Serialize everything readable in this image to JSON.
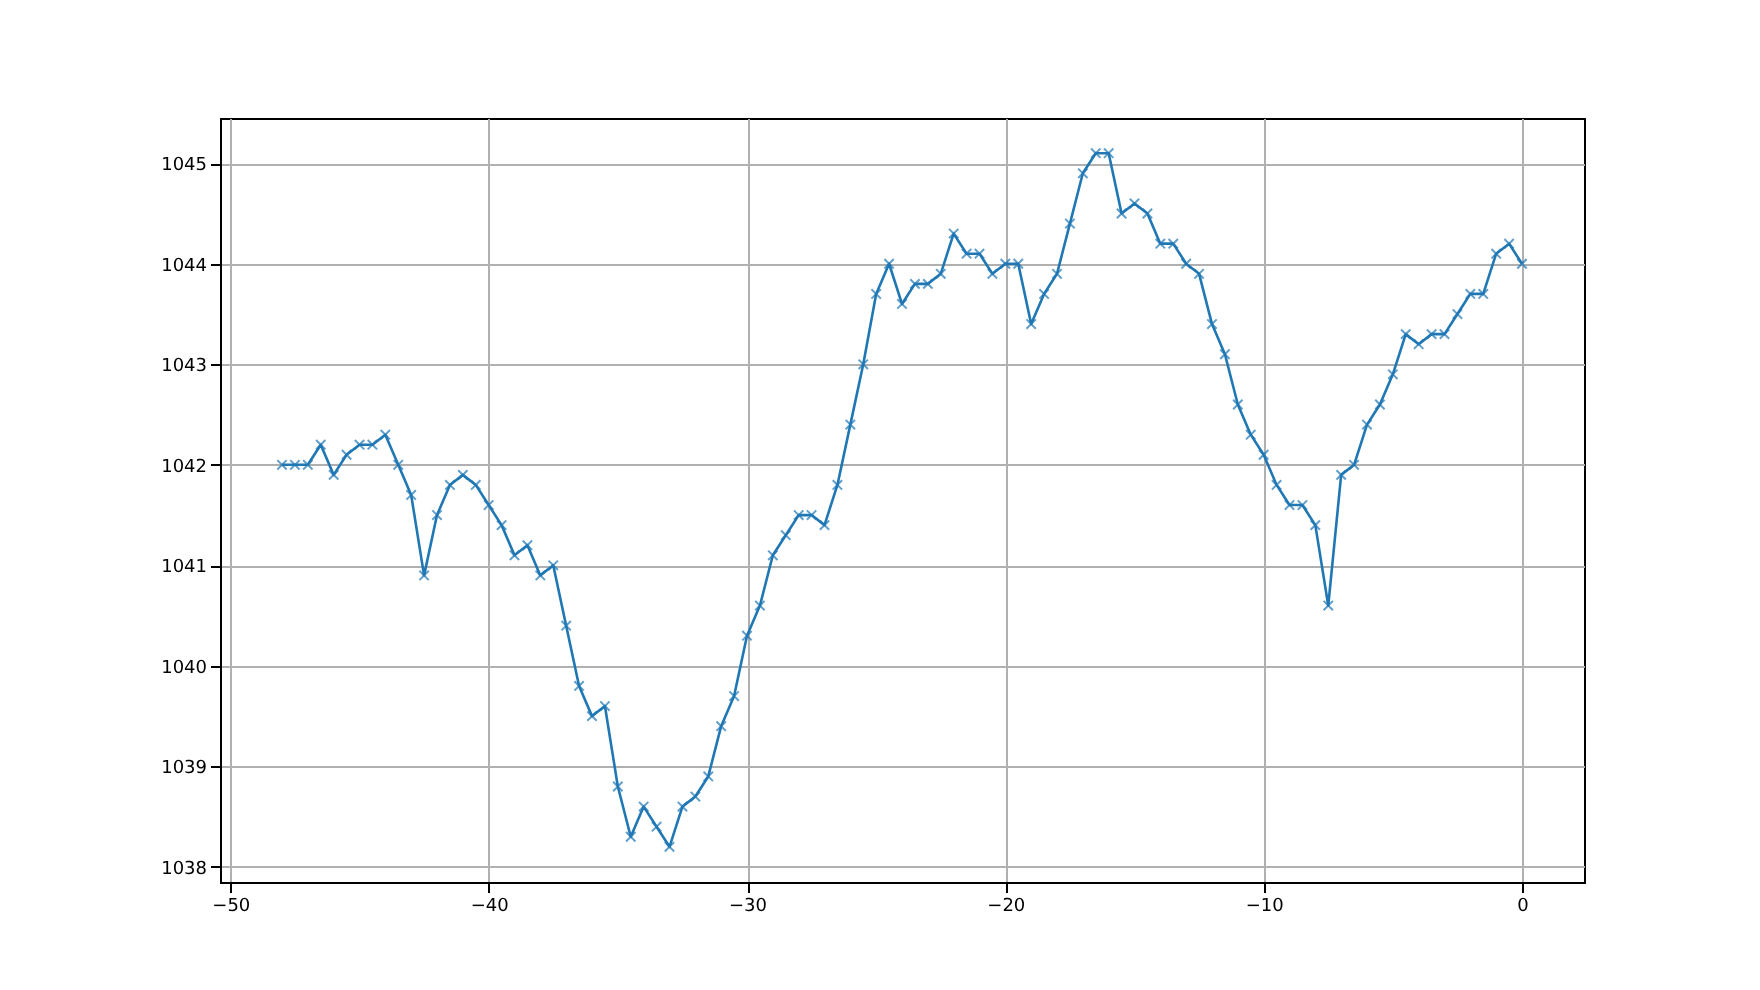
{
  "chart_data": {
    "type": "line",
    "x": [
      -48,
      -47.5,
      -47,
      -46.5,
      -46,
      -45.5,
      -45,
      -44.5,
      -44,
      -43.5,
      -43,
      -42.5,
      -42,
      -41.5,
      -41,
      -40.5,
      -40,
      -39.5,
      -39,
      -38.5,
      -38,
      -37.5,
      -37,
      -36.5,
      -36,
      -35.5,
      -35,
      -34.5,
      -34,
      -33.5,
      -33,
      -32.5,
      -32,
      -31.5,
      -31,
      -30.5,
      -30,
      -29.5,
      -29,
      -28.5,
      -28,
      -27.5,
      -27,
      -26.5,
      -26,
      -25.5,
      -25,
      -24.5,
      -24,
      -23.5,
      -23,
      -22.5,
      -22,
      -21.5,
      -21,
      -20.5,
      -20,
      -19.5,
      -19,
      -18.5,
      -18,
      -17.5,
      -17,
      -16.5,
      -16,
      -15.5,
      -15,
      -14.5,
      -14,
      -13.5,
      -13,
      -12.5,
      -12,
      -11.5,
      -11,
      -10.5,
      -10,
      -9.5,
      -9,
      -8.5,
      -8,
      -7.5,
      -7,
      -6.5,
      -6,
      -5.5,
      -5,
      -4.5,
      -4,
      -3.5,
      -3,
      -2.5,
      -2,
      -1.5,
      -1,
      -0.5,
      0
    ],
    "series": [
      {
        "color": "#1f77b4",
        "values": [
          1042.0,
          1042.0,
          1042.0,
          1042.2,
          1041.9,
          1042.1,
          1042.2,
          1042.2,
          1042.3,
          1042.0,
          1041.7,
          1040.9,
          1041.5,
          1041.8,
          1041.9,
          1041.8,
          1041.6,
          1041.4,
          1041.1,
          1041.2,
          1040.9,
          1041.0,
          1040.4,
          1039.8,
          1039.5,
          1039.6,
          1038.8,
          1038.3,
          1038.6,
          1038.4,
          1038.2,
          1038.6,
          1038.7,
          1038.9,
          1039.4,
          1039.7,
          1040.3,
          1040.6,
          1041.1,
          1041.3,
          1041.5,
          1041.5,
          1041.4,
          1041.8,
          1042.4,
          1043.0,
          1043.7,
          1044.0,
          1043.6,
          1043.8,
          1043.8,
          1043.9,
          1044.3,
          1044.1,
          1044.1,
          1043.9,
          1044.0,
          1044.0,
          1043.4,
          1043.7,
          1043.9,
          1044.4,
          1044.9,
          1045.1,
          1045.1,
          1044.5,
          1044.6,
          1044.5,
          1044.2,
          1044.2,
          1044.0,
          1043.9,
          1043.4,
          1043.1,
          1042.6,
          1042.3,
          1042.1,
          1041.8,
          1041.6,
          1041.6,
          1041.4,
          1040.6,
          1041.9,
          1042.0,
          1042.4,
          1042.6,
          1042.9,
          1043.3,
          1043.2,
          1043.3,
          1043.3,
          1043.5,
          1043.7,
          1043.7,
          1044.1,
          1044.2,
          1044.0
        ]
      }
    ],
    "xlim": [
      -50.4,
      2.4
    ],
    "xticks": [
      -50,
      -40,
      -30,
      -20,
      -10,
      0
    ],
    "ylim": [
      1037.85,
      1045.45
    ],
    "yticks": [
      1038,
      1039,
      1040,
      1041,
      1042,
      1043,
      1044,
      1045
    ],
    "grid": true,
    "marker": "cross",
    "line_style": "solid"
  }
}
